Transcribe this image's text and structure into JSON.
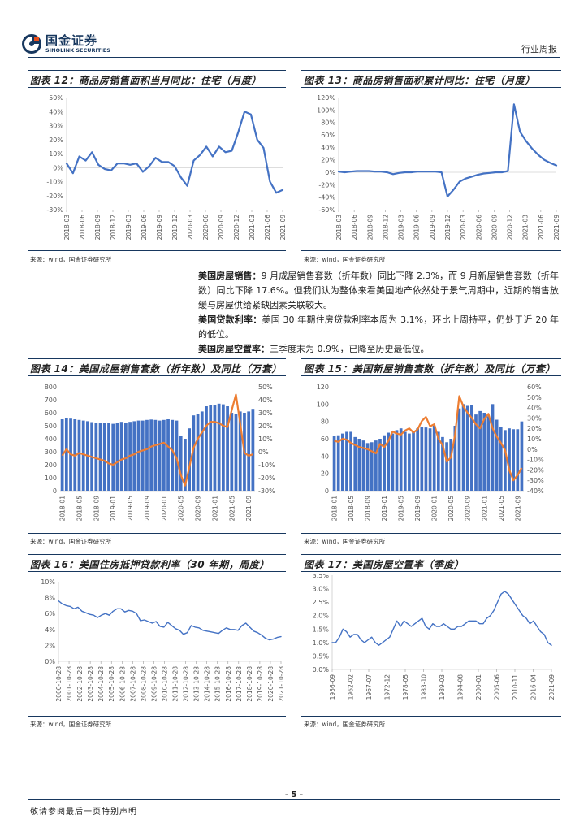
{
  "header": {
    "logo_cn": "国金证券",
    "logo_en": "SINOLINK SECURITIES",
    "section": "行业周报"
  },
  "source_text": "来源：wind，国金证券研究所",
  "text": {
    "p1_label": "美国房屋销售：",
    "p1_body": "9 月成屋销售套数（折年数）同比下降 2.3%，而 9 月新屋销售套数（折年数）同比下降 17.6%。但我们认为整体来看美国地产依然处于景气周期中，近期的销售放缓与房屋供给紧缺因素关联较大。",
    "p2_label": "美国贷款利率：",
    "p2_body": "美国 30 年期住房贷款利率本周为 3.1%，环比上周持平，仍处于近 20 年的低位。",
    "p3_label": "美国房屋空置率：",
    "p3_body": "三季度末为 0.9%，已降至历史最低位。"
  },
  "footer": {
    "page": "- 5 -",
    "disclaimer": "敬请参阅最后一页特别声明"
  },
  "colors": {
    "blue": "#4472C4",
    "orange": "#ED7D31",
    "rule": "#17375E"
  },
  "chart_data": [
    {
      "id": "fig12",
      "title": "图表 12：商品房销售面积当月同比：住宅（月度）",
      "type": "line",
      "ylim": [
        -30,
        50
      ],
      "y_ticks": [
        "50%",
        "40%",
        "30%",
        "20%",
        "10%",
        "0%",
        "-10%",
        "-20%",
        "-30%"
      ],
      "x_ticks": [
        "2018-03",
        "2018-06",
        "2018-09",
        "2018-12",
        "2019-03",
        "2019-06",
        "2019-09",
        "2019-12",
        "2020-03",
        "2020-06",
        "2020-09",
        "2020-12",
        "2021-03",
        "2021-06",
        "2021-09"
      ],
      "series": [
        {
          "values": [
            3,
            -4,
            8,
            5,
            11,
            2,
            -1,
            -2,
            3,
            3,
            2,
            3,
            -3,
            1,
            7,
            4,
            4,
            1,
            -7,
            -13,
            5,
            9,
            15,
            8,
            15,
            11,
            12,
            25,
            40,
            38,
            20,
            14,
            -10,
            -18,
            -16
          ]
        }
      ]
    },
    {
      "id": "fig13",
      "title": "图表 13：商品房销售面积累计同比：住宅（月度）",
      "type": "line",
      "ylim": [
        -60,
        120
      ],
      "y_ticks": [
        "120%",
        "100%",
        "80%",
        "60%",
        "40%",
        "20%",
        "0%",
        "-20%",
        "-40%",
        "-60%"
      ],
      "x_ticks": [
        "2018-03",
        "2018-06",
        "2018-09",
        "2018-12",
        "2019-03",
        "2019-06",
        "2019-09",
        "2019-12",
        "2020-03",
        "2020-06",
        "2020-09",
        "2020-12",
        "2021-03",
        "2021-06",
        "2021-09"
      ],
      "series": [
        {
          "values": [
            1,
            0,
            1,
            2,
            2,
            2,
            1,
            1,
            0,
            -3,
            -1,
            0,
            0,
            1,
            1,
            1,
            1,
            0,
            -39,
            -28,
            -15,
            -10,
            -7,
            -4,
            -2,
            -1,
            0,
            0,
            2,
            109,
            65,
            50,
            38,
            28,
            20,
            15,
            11
          ]
        }
      ]
    },
    {
      "id": "fig14",
      "title": "图表 14：美国成屋销售套数（折年数）及同比（万套）",
      "type": "bar",
      "ylim_left": [
        0,
        800
      ],
      "ylim_right": [
        -30,
        50
      ],
      "y_ticks_left": [
        "800",
        "700",
        "600",
        "500",
        "400",
        "300",
        "200",
        "100",
        "0"
      ],
      "y_ticks_right": [
        "50%",
        "40%",
        "30%",
        "20%",
        "10%",
        "0%",
        "-10%",
        "-20%",
        "-30%"
      ],
      "x_ticks": [
        "2018-01",
        "2018-05",
        "2018-09",
        "2019-01",
        "2019-05",
        "2019-09",
        "2020-01",
        "2020-05",
        "2020-09",
        "2021-01",
        "2021-05",
        "2021-09"
      ],
      "bars": [
        550,
        560,
        555,
        550,
        545,
        540,
        535,
        528,
        522,
        525,
        520,
        520,
        515,
        520,
        530,
        525,
        530,
        535,
        540,
        540,
        545,
        548,
        545,
        540,
        545,
        550,
        545,
        540,
        420,
        400,
        480,
        580,
        590,
        610,
        650,
        660,
        660,
        670,
        665,
        650,
        600,
        590,
        610,
        600,
        610,
        630
      ],
      "line": [
        -3,
        2,
        -2,
        -3,
        -1,
        -2,
        -3,
        -4,
        -5,
        -6,
        -7,
        -9,
        -10,
        -8,
        -6,
        -5,
        -3,
        -2,
        0,
        1,
        2,
        4,
        5,
        6,
        7,
        4,
        1,
        -5,
        -18,
        -26,
        -12,
        3,
        10,
        15,
        20,
        23,
        23,
        22,
        20,
        19,
        32,
        44,
        22,
        -1,
        -3,
        -2
      ]
    },
    {
      "id": "fig15",
      "title": "图表 15：美国新屋销售套数（折年数）及同比（万套）",
      "type": "bar",
      "ylim_left": [
        0,
        120
      ],
      "ylim_right": [
        -40,
        60
      ],
      "y_ticks_left": [
        "120",
        "100",
        "80",
        "60",
        "40",
        "20",
        "0"
      ],
      "y_ticks_right": [
        "60%",
        "50%",
        "40%",
        "30%",
        "20%",
        "10%",
        "0%",
        "-10%",
        "-20%",
        "-30%",
        "-40%"
      ],
      "x_ticks": [
        "2018-01",
        "2018-05",
        "2018-09",
        "2019-01",
        "2019-05",
        "2019-09",
        "2020-01",
        "2020-05",
        "2020-09",
        "2021-01",
        "2021-05",
        "2021-09"
      ],
      "bars": [
        63,
        64,
        66,
        68,
        68,
        62,
        60,
        58,
        55,
        56,
        58,
        60,
        64,
        67,
        66,
        70,
        72,
        68,
        66,
        69,
        72,
        74,
        73,
        72,
        75,
        68,
        62,
        56,
        60,
        75,
        95,
        100,
        98,
        99,
        88,
        92,
        90,
        86,
        100,
        82,
        74,
        70,
        72,
        71,
        71,
        80
      ],
      "line": [
        8,
        7,
        10,
        9,
        6,
        4,
        2,
        1,
        0,
        -2,
        -4,
        5,
        2,
        8,
        17,
        15,
        14,
        18,
        20,
        16,
        19,
        27,
        31,
        22,
        24,
        10,
        4,
        -12,
        -8,
        14,
        51,
        41,
        35,
        30,
        24,
        20,
        29,
        34,
        20,
        12,
        6,
        -1,
        -20,
        -30,
        -25,
        -18
      ]
    },
    {
      "id": "fig16",
      "title": "图表 16：美国住房抵押贷款利率（30 年期，周度）",
      "type": "line",
      "ylim": [
        0,
        10
      ],
      "y_ticks": [
        "10%",
        "8%",
        "6%",
        "4%",
        "2%",
        "0%"
      ],
      "x_ticks": [
        "2000-10-28",
        "2001-10-28",
        "2002-10-28",
        "2003-10-28",
        "2004-10-28",
        "2005-10-28",
        "2006-10-28",
        "2007-10-28",
        "2008-10-28",
        "2009-10-28",
        "2010-10-28",
        "2011-10-28",
        "2012-10-28",
        "2013-10-28",
        "2014-10-28",
        "2015-10-28",
        "2016-10-28",
        "2017-10-28",
        "2018-10-28",
        "2019-10-28",
        "2020-10-28",
        "2021-10-28"
      ],
      "series": [
        {
          "values": [
            7.6,
            7.2,
            7.0,
            6.9,
            6.6,
            6.8,
            6.3,
            6.1,
            5.9,
            5.8,
            5.5,
            5.8,
            6.0,
            5.8,
            6.3,
            6.6,
            6.6,
            6.2,
            6.4,
            6.3,
            6.0,
            5.1,
            5.2,
            5.0,
            4.8,
            5.0,
            4.4,
            4.3,
            4.9,
            4.5,
            4.1,
            3.9,
            3.4,
            3.6,
            4.5,
            4.3,
            4.2,
            3.9,
            3.8,
            3.7,
            3.6,
            3.5,
            3.9,
            4.2,
            4.0,
            4.0,
            3.9,
            4.5,
            4.8,
            4.3,
            3.8,
            3.6,
            3.3,
            2.9,
            2.7,
            2.8,
            3.0,
            3.1
          ]
        }
      ]
    },
    {
      "id": "fig17",
      "title": "图表 17：美国房屋空置率（季度）",
      "type": "line",
      "ylim": [
        0,
        3.5
      ],
      "y_ticks": [
        "3.5%",
        "3.0%",
        "2.5%",
        "2.0%",
        "1.5%",
        "1.0%",
        "0.5%",
        "0.0%"
      ],
      "x_ticks": [
        "1956-09",
        "1962-02",
        "1967-07",
        "1972-12",
        "1978-05",
        "1983-10",
        "1989-03",
        "1994-08",
        "2000-01",
        "2005-06",
        "2010-11",
        "2016-04",
        "2021-09"
      ],
      "series": [
        {
          "values": [
            1.0,
            1.0,
            1.2,
            1.5,
            1.4,
            1.2,
            1.3,
            1.3,
            1.1,
            1.0,
            1.1,
            1.2,
            1.0,
            0.9,
            1.0,
            1.1,
            1.2,
            1.5,
            1.8,
            1.6,
            1.8,
            1.7,
            1.6,
            1.7,
            1.8,
            1.9,
            1.6,
            1.5,
            1.7,
            1.6,
            1.6,
            1.7,
            1.6,
            1.5,
            1.5,
            1.6,
            1.6,
            1.7,
            1.8,
            1.8,
            1.8,
            1.7,
            1.7,
            1.9,
            2.0,
            2.2,
            2.5,
            2.8,
            2.9,
            2.8,
            2.6,
            2.4,
            2.2,
            2.0,
            1.9,
            1.7,
            1.8,
            1.6,
            1.4,
            1.3,
            1.0,
            0.9
          ]
        }
      ]
    }
  ]
}
